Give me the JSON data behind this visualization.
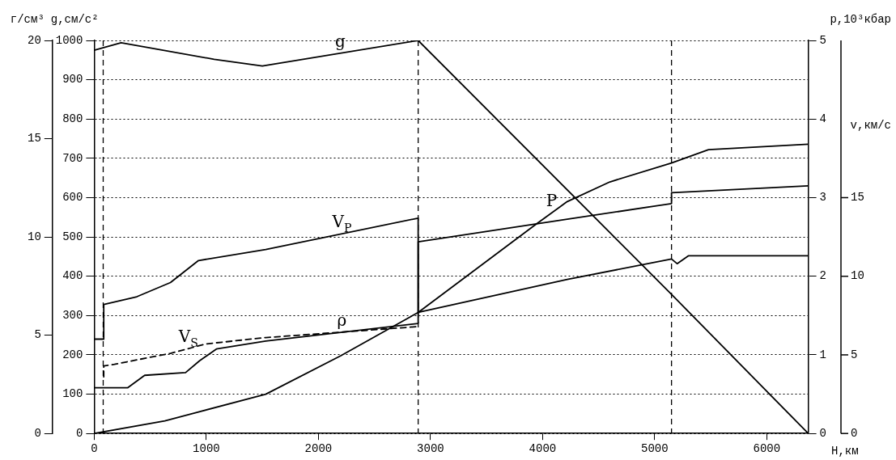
{
  "chart_data": [
    {
      "type": "line",
      "xlabel": "H,км",
      "ylabel": "g,см/с²",
      "y2label": "г/см³",
      "y3label": "р,10³кбар",
      "xlim": [
        0,
        6370
      ],
      "xticks": [
        0,
        1000,
        2000,
        3000,
        4000,
        5000,
        6000
      ],
      "ylim": [
        0,
        1000
      ],
      "yticks": [
        0,
        100,
        200,
        300,
        400,
        500,
        600,
        700,
        800,
        900,
        1000
      ],
      "y2lim": [
        0,
        20
      ],
      "y2ticks": [
        0,
        5,
        10,
        15,
        20
      ],
      "y3lim": [
        0,
        5
      ],
      "y3ticks": [
        0,
        1,
        2,
        3,
        4,
        5
      ],
      "grid": "y",
      "marker": "none",
      "ref_lines": [
        {
          "axis": "x",
          "value": 80,
          "color": "#000000",
          "line_style": "dashed"
        },
        {
          "axis": "x",
          "value": 2890,
          "color": "#000000",
          "line_style": "dashed"
        },
        {
          "axis": "x",
          "value": 5150,
          "color": "#000000",
          "line_style": "dashed"
        }
      ],
      "series": [
        {
          "name": "g",
          "color": "#000000",
          "line_style": "solid",
          "x": [
            0,
            240,
            1070,
            1500,
            2890,
            5150,
            6370
          ],
          "values": [
            975,
            994,
            952,
            935,
            1000,
            354,
            0
          ]
        },
        {
          "name": "ρ",
          "color": "#000000",
          "axis": "y2",
          "line_style": "solid",
          "x": [
            0,
            300,
            450,
            815,
            940,
            1090,
            1530,
            2890,
            2890,
            4220,
            5150,
            5150,
            6370
          ],
          "values": [
            2.33,
            2.33,
            2.96,
            3.1,
            3.7,
            4.3,
            4.7,
            5.6,
            9.75,
            10.9,
            11.7,
            12.25,
            12.6
          ]
        },
        {
          "name": "P",
          "color": "#000000",
          "axis": "y3",
          "line_style": "solid",
          "x": [
            0,
            630,
            1530,
            2200,
            2890,
            3940,
            4220,
            4600,
            5150,
            5480,
            6370
          ],
          "values": [
            0,
            0.16,
            0.5,
            0.99,
            1.54,
            2.66,
            2.95,
            3.2,
            3.44,
            3.61,
            3.68
          ]
        }
      ]
    },
    {
      "type": "line",
      "ylabel": "v,км/с",
      "xlim": [
        0,
        6370
      ],
      "ylim": [
        0,
        25
      ],
      "yticks": [
        0,
        5,
        10,
        15
      ],
      "tick_labels": "y",
      "marker": "none",
      "series": [
        {
          "name": "V$_{P}$",
          "color": "#000000",
          "line_style": "solid",
          "x": [
            0,
            85,
            85,
            380,
            680,
            930,
            1530,
            2890,
            2890,
            4220,
            5150,
            5200,
            5300,
            6370
          ],
          "values": [
            6,
            6,
            8.2,
            8.7,
            9.6,
            11,
            11.7,
            13.7,
            7.7,
            9.8,
            11.1,
            10.8,
            11.3,
            11.3
          ]
        },
        {
          "name": "V$_{S}$",
          "color": "#000000",
          "line_style": "dashed",
          "x": [
            85,
            85,
            180,
            680,
            1000,
            1530,
            2890
          ],
          "values": [
            3.6,
            4.3,
            4.4,
            5.1,
            5.7,
            6.1,
            6.8
          ]
        }
      ]
    }
  ]
}
